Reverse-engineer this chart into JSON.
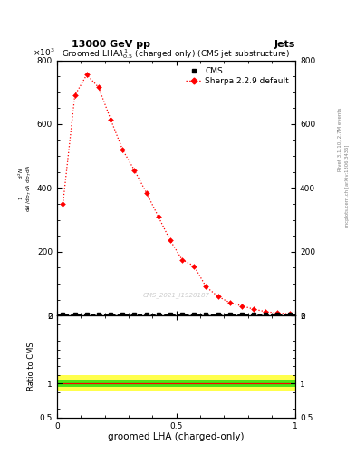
{
  "title_left": "13000 GeV pp",
  "title_right": "Jets",
  "plot_title": "Groomed LHA$\\lambda^{1}_{0.5}$ (charged only) (CMS jet substructure)",
  "xlabel": "groomed LHA (charged-only)",
  "ylabel_ratio": "Ratio to CMS",
  "watermark": "CMS_2021_I1920187",
  "rivet_label1": "Rivet 3.1.10, 2.7M events",
  "rivet_label2": "mcplots.cern.ch [arXiv:1306.3436]",
  "sherpa_x": [
    0.025,
    0.075,
    0.125,
    0.175,
    0.225,
    0.275,
    0.325,
    0.375,
    0.425,
    0.475,
    0.525,
    0.575,
    0.625,
    0.675,
    0.725,
    0.775,
    0.825,
    0.875,
    0.925,
    0.975
  ],
  "sherpa_y": [
    350,
    690,
    755,
    715,
    615,
    520,
    455,
    385,
    310,
    235,
    175,
    155,
    90,
    60,
    40,
    30,
    20,
    12,
    8,
    5
  ],
  "sherpa_yerr": [
    10,
    8,
    8,
    8,
    7,
    7,
    6,
    6,
    5,
    5,
    4,
    4,
    3,
    2,
    2,
    1.5,
    1,
    0.8,
    0.5,
    0.3
  ],
  "cms_x": [
    0.025,
    0.075,
    0.125,
    0.175,
    0.225,
    0.275,
    0.325,
    0.375,
    0.425,
    0.475,
    0.525,
    0.575,
    0.625,
    0.675,
    0.725,
    0.775,
    0.825,
    0.875,
    0.925,
    0.975
  ],
  "cms_y": [
    2,
    2,
    2,
    2,
    2,
    2,
    2,
    2,
    2,
    2,
    2,
    2,
    2,
    2,
    2,
    2,
    2,
    2,
    2,
    2
  ],
  "ylim_main": [
    0,
    800
  ],
  "yticks_main": [
    0,
    200,
    400,
    600,
    800
  ],
  "xlim": [
    0.0,
    1.0
  ],
  "xticks": [
    0,
    0.5,
    1.0
  ],
  "ylim_ratio": [
    0.5,
    2.0
  ],
  "yticks_ratio": [
    0.5,
    1.0,
    2.0
  ],
  "green_band": 0.05,
  "yellow_band": 0.12,
  "bg": "#ffffff"
}
